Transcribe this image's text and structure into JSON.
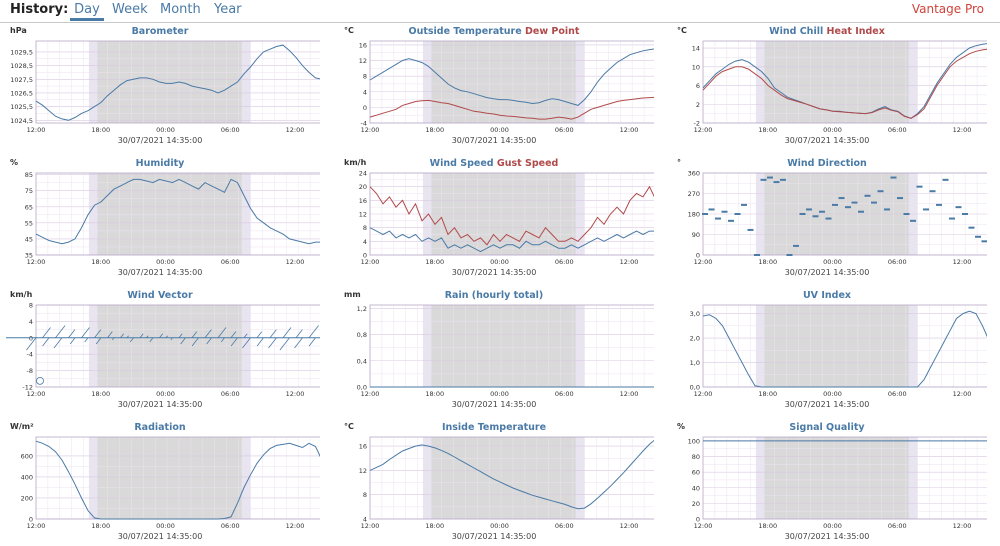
{
  "header": {
    "history_label": "History:",
    "tabs": [
      {
        "label": "Day",
        "active": true
      },
      {
        "label": "Week"
      },
      {
        "label": "Month"
      },
      {
        "label": "Year"
      }
    ],
    "station": "Vantage Pro"
  },
  "colors": {
    "primary": "#4a7aa6",
    "secondary": "#b04a4a",
    "night": "#d9d9d9",
    "grid": "#d8c8e0"
  },
  "common": {
    "date": "30/07/2021 14:35:00",
    "x_ticks": [
      "12:00",
      "18:00",
      "00:00",
      "06:00",
      "12:00"
    ]
  },
  "charts": [
    {
      "id": "barometer",
      "title": "Barometer",
      "unit": "hPa",
      "yticks": [
        "1024,5",
        "1025,5",
        "1026,5",
        "1027,5",
        "1028,5",
        "1029,5"
      ],
      "ylim": [
        1024.3,
        1030.3
      ],
      "type": "line",
      "series": [
        {
          "color": "primary",
          "values": [
            1025.9,
            1025.6,
            1025.2,
            1024.8,
            1024.6,
            1024.5,
            1024.7,
            1025.0,
            1025.2,
            1025.5,
            1025.8,
            1026.3,
            1026.7,
            1027.1,
            1027.4,
            1027.5,
            1027.6,
            1027.6,
            1027.5,
            1027.3,
            1027.2,
            1027.2,
            1027.3,
            1027.2,
            1027.0,
            1026.9,
            1026.8,
            1026.7,
            1026.5,
            1026.7,
            1027.0,
            1027.3,
            1027.9,
            1028.4,
            1029.0,
            1029.5,
            1029.7,
            1029.9,
            1030.0,
            1029.6,
            1029.1,
            1028.5,
            1028.0,
            1027.6,
            1027.5
          ]
        }
      ]
    },
    {
      "id": "outside-temp",
      "title": "Outside Temperature",
      "title2": "Dew Point",
      "unit": "°C",
      "yticks": [
        "-4",
        "0",
        "4",
        "8",
        "12",
        "16"
      ],
      "ylim": [
        -4,
        17
      ],
      "type": "line",
      "series": [
        {
          "color": "primary",
          "values": [
            7.0,
            8.0,
            9.0,
            10.0,
            11.0,
            12.0,
            12.5,
            12.0,
            11.5,
            10.5,
            9.0,
            7.5,
            6.0,
            5.0,
            4.3,
            4.0,
            3.5,
            3.0,
            2.5,
            2.2,
            2.0,
            2.0,
            1.8,
            1.5,
            1.3,
            1.0,
            1.2,
            1.8,
            2.2,
            2.0,
            1.5,
            1.0,
            0.5,
            2.0,
            4.0,
            6.5,
            8.5,
            10.0,
            11.5,
            12.5,
            13.5,
            14.0,
            14.5,
            14.8,
            15.0
          ]
        },
        {
          "color": "secondary",
          "values": [
            -2.5,
            -2.0,
            -1.5,
            -1.0,
            -0.5,
            0.5,
            1.0,
            1.5,
            1.7,
            1.8,
            1.5,
            1.2,
            1.0,
            0.5,
            0.0,
            -0.5,
            -1.0,
            -1.2,
            -1.5,
            -1.7,
            -2.0,
            -2.2,
            -2.3,
            -2.5,
            -2.7,
            -2.8,
            -3.0,
            -3.0,
            -2.8,
            -2.5,
            -2.7,
            -3.0,
            -2.5,
            -1.5,
            -0.5,
            0.0,
            0.5,
            1.0,
            1.5,
            1.8,
            2.0,
            2.2,
            2.4,
            2.5,
            2.6
          ]
        }
      ]
    },
    {
      "id": "wind-chill",
      "title": "Wind Chill",
      "title2": "Heat Index",
      "unit": "°C",
      "yticks": [
        "-2",
        "2",
        "6",
        "10",
        "14"
      ],
      "ylim": [
        -2,
        15.5
      ],
      "type": "line",
      "series": [
        {
          "color": "primary",
          "values": [
            5.5,
            7.0,
            8.5,
            9.5,
            10.5,
            11.2,
            11.5,
            11.0,
            10.0,
            9.0,
            7.5,
            5.5,
            4.5,
            3.5,
            3.0,
            2.5,
            2.0,
            1.5,
            1.0,
            0.8,
            0.5,
            0.5,
            0.3,
            0.2,
            0.1,
            0.0,
            0.3,
            1.0,
            1.5,
            0.8,
            0.5,
            -0.5,
            -1.0,
            0.0,
            1.5,
            4.0,
            6.5,
            8.5,
            10.5,
            12.0,
            13.0,
            14.0,
            14.5,
            14.8,
            15.0
          ]
        },
        {
          "color": "secondary",
          "values": [
            5.0,
            6.5,
            8.0,
            9.0,
            9.5,
            10.0,
            10.0,
            9.5,
            8.5,
            7.5,
            6.0,
            5.0,
            4.0,
            3.2,
            2.8,
            2.4,
            2.0,
            1.5,
            1.0,
            0.8,
            0.5,
            0.4,
            0.3,
            0.2,
            0.1,
            0.0,
            0.2,
            0.8,
            1.2,
            0.7,
            0.4,
            -0.6,
            -1.0,
            -0.2,
            1.0,
            3.5,
            6.0,
            8.0,
            10.0,
            11.2,
            12.0,
            12.8,
            13.3,
            13.6,
            13.8
          ]
        }
      ]
    },
    {
      "id": "humidity",
      "title": "Humidity",
      "unit": "%",
      "yticks": [
        "35",
        "45",
        "55",
        "65",
        "75",
        "85"
      ],
      "ylim": [
        35,
        86
      ],
      "type": "line",
      "series": [
        {
          "color": "primary",
          "values": [
            48,
            46,
            44,
            43,
            42,
            43,
            45,
            52,
            60,
            66,
            68,
            72,
            76,
            78,
            80,
            82,
            82,
            81,
            80,
            82,
            81,
            80,
            82,
            80,
            78,
            76,
            80,
            78,
            76,
            74,
            82,
            80,
            72,
            64,
            58,
            55,
            52,
            50,
            48,
            45,
            44,
            43,
            42,
            43,
            43
          ]
        }
      ]
    },
    {
      "id": "wind-speed",
      "title": "Wind Speed",
      "title2": "Gust Speed",
      "unit": "km/h",
      "yticks": [
        "0",
        "4",
        "8",
        "12",
        "16",
        "20",
        "24"
      ],
      "ylim": [
        0,
        24
      ],
      "type": "line",
      "series": [
        {
          "color": "primary",
          "values": [
            8,
            7,
            6,
            7,
            5,
            6,
            5,
            6,
            4,
            5,
            4,
            5,
            2,
            3,
            2,
            3,
            2,
            1,
            2,
            3,
            2,
            3,
            3,
            2,
            4,
            3,
            3,
            4,
            3,
            2,
            2,
            3,
            2,
            3,
            4,
            5,
            4,
            5,
            6,
            5,
            6,
            7,
            6,
            7,
            7
          ]
        },
        {
          "color": "secondary",
          "values": [
            20,
            18,
            15,
            17,
            14,
            16,
            12,
            15,
            10,
            12,
            9,
            11,
            6,
            8,
            5,
            6,
            4,
            5,
            3,
            6,
            4,
            6,
            5,
            4,
            7,
            6,
            5,
            8,
            6,
            4,
            4,
            5,
            4,
            6,
            8,
            11,
            9,
            12,
            14,
            12,
            16,
            18,
            17,
            20,
            16
          ]
        }
      ]
    },
    {
      "id": "wind-direction",
      "title": "Wind Direction",
      "unit": "°",
      "yticks": [
        "0",
        "90",
        "180",
        "270",
        "360"
      ],
      "ylim": [
        0,
        360
      ],
      "type": "scatter",
      "series": [
        {
          "color": "primary",
          "values": [
            180,
            200,
            160,
            190,
            150,
            180,
            220,
            110,
            0,
            330,
            340,
            320,
            330,
            0,
            40,
            180,
            200,
            170,
            190,
            160,
            220,
            250,
            210,
            230,
            190,
            260,
            230,
            280,
            200,
            340,
            250,
            180,
            150,
            300,
            200,
            280,
            220,
            330,
            160,
            210,
            180,
            120,
            80,
            60,
            40
          ]
        }
      ]
    },
    {
      "id": "wind-vector",
      "title": "Wind Vector",
      "unit": "km/h",
      "yticks": [
        "-12",
        "-8",
        "-4",
        "0",
        "4",
        "8"
      ],
      "ylim": [
        -12,
        8
      ],
      "type": "vector",
      "series": [
        {
          "color": "primary",
          "values": [
            -6,
            5,
            -4,
            6,
            -5,
            4,
            -3,
            5,
            -2,
            4,
            -3,
            3,
            -1,
            2,
            1,
            -2,
            2,
            1,
            -2,
            2,
            1,
            -1,
            2,
            -3,
            3,
            -4,
            4,
            -3,
            5,
            -2,
            3,
            -4,
            2,
            -5,
            3,
            -4,
            4,
            -5,
            5,
            -6,
            4,
            -5,
            6,
            -4,
            5
          ]
        }
      ]
    },
    {
      "id": "rain",
      "title": "Rain (hourly total)",
      "unit": "mm",
      "yticks": [
        "0,0",
        "0,4",
        "0,8",
        "1,2"
      ],
      "ylim": [
        0,
        1.25
      ],
      "type": "line",
      "series": [
        {
          "color": "primary",
          "values": [
            0,
            0,
            0,
            0,
            0,
            0,
            0,
            0,
            0,
            0,
            0,
            0,
            0,
            0,
            0,
            0,
            0,
            0,
            0,
            0,
            0,
            0,
            0,
            0,
            0,
            0,
            0,
            0,
            0,
            0,
            0,
            0,
            0,
            0,
            0,
            0,
            0,
            0,
            0,
            0,
            0,
            0,
            0,
            0,
            0
          ]
        }
      ]
    },
    {
      "id": "uv-index",
      "title": "UV Index",
      "unit": "",
      "yticks": [
        "0,0",
        "1,0",
        "2,0",
        "3,0"
      ],
      "ylim": [
        0,
        3.35
      ],
      "type": "line",
      "series": [
        {
          "color": "primary",
          "values": [
            2.9,
            2.95,
            2.8,
            2.5,
            2.0,
            1.5,
            1.0,
            0.5,
            0.05,
            0,
            0,
            0,
            0,
            0,
            0,
            0,
            0,
            0,
            0,
            0,
            0,
            0,
            0,
            0,
            0,
            0,
            0,
            0,
            0,
            0,
            0,
            0,
            0,
            0,
            0.3,
            0.8,
            1.3,
            1.8,
            2.3,
            2.8,
            3.0,
            3.1,
            3.0,
            2.5,
            1.9
          ]
        }
      ]
    },
    {
      "id": "radiation",
      "title": "Radiation",
      "unit": "W/m²",
      "yticks": [
        "0",
        "200",
        "400",
        "600"
      ],
      "ylim": [
        0,
        780
      ],
      "type": "line",
      "series": [
        {
          "color": "primary",
          "values": [
            740,
            720,
            690,
            640,
            560,
            450,
            330,
            200,
            80,
            10,
            0,
            0,
            0,
            0,
            0,
            0,
            0,
            0,
            0,
            0,
            0,
            0,
            0,
            0,
            0,
            0,
            0,
            0,
            0,
            5,
            20,
            150,
            300,
            420,
            530,
            610,
            670,
            700,
            710,
            720,
            700,
            680,
            720,
            690,
            560
          ]
        }
      ]
    },
    {
      "id": "inside-temp",
      "title": "Inside Temperature",
      "unit": "°C",
      "yticks": [
        "4",
        "8",
        "12",
        "16"
      ],
      "ylim": [
        4,
        17.5
      ],
      "type": "line",
      "series": [
        {
          "color": "primary",
          "values": [
            12.0,
            12.5,
            13.0,
            13.8,
            14.5,
            15.2,
            15.6,
            16.0,
            16.2,
            16.0,
            15.7,
            15.3,
            14.8,
            14.2,
            13.6,
            13.0,
            12.4,
            11.8,
            11.2,
            10.6,
            10.1,
            9.6,
            9.1,
            8.7,
            8.3,
            7.9,
            7.6,
            7.3,
            7.0,
            6.7,
            6.4,
            6.0,
            5.7,
            5.8,
            6.5,
            7.4,
            8.4,
            9.4,
            10.5,
            11.6,
            12.8,
            14.0,
            15.2,
            16.3,
            17.2
          ]
        }
      ]
    },
    {
      "id": "signal-quality",
      "title": "Signal Quality",
      "unit": "%",
      "yticks": [
        "0",
        "20",
        "40",
        "60",
        "80",
        "100"
      ],
      "ylim": [
        0,
        105
      ],
      "type": "line",
      "series": [
        {
          "color": "primary",
          "values": [
            100,
            100,
            100,
            100,
            100,
            100,
            100,
            100,
            100,
            100,
            100,
            100,
            100,
            100,
            100,
            100,
            100,
            100,
            100,
            100,
            100,
            100,
            100,
            100,
            100,
            100,
            100,
            100,
            100,
            100,
            100,
            100,
            100,
            100,
            100,
            100,
            100,
            100,
            100,
            100,
            100,
            100,
            100,
            100,
            100
          ]
        }
      ]
    }
  ]
}
